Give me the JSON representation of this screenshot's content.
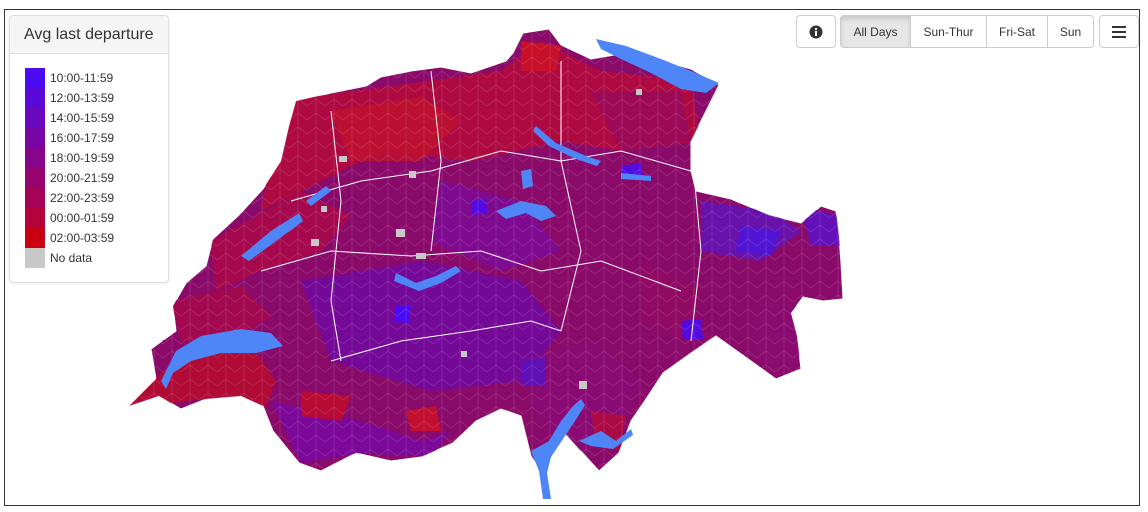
{
  "legend": {
    "title": "Avg last departure",
    "items": [
      {
        "label": "10:00-11:59",
        "color": "#4b0bf2"
      },
      {
        "label": "12:00-13:59",
        "color": "#5a0ad8"
      },
      {
        "label": "14:00-15:59",
        "color": "#6908be"
      },
      {
        "label": "16:00-17:59",
        "color": "#7806a4"
      },
      {
        "label": "18:00-19:59",
        "color": "#87058a"
      },
      {
        "label": "20:00-21:59",
        "color": "#960470"
      },
      {
        "label": "22:00-23:59",
        "color": "#a50356"
      },
      {
        "label": "00:00-01:59",
        "color": "#b4023c"
      },
      {
        "label": "02:00-03:59",
        "color": "#c80010"
      },
      {
        "label": "No data",
        "color": "#c8c8c8"
      }
    ]
  },
  "toolbar": {
    "info_icon": "info-circle-icon",
    "menu_icon": "hamburger-menu-icon",
    "day_filters": [
      {
        "label": "All Days",
        "active": true
      },
      {
        "label": "Sun-Thur",
        "active": false
      },
      {
        "label": "Fri-Sat",
        "active": false
      },
      {
        "label": "Sun",
        "active": false
      }
    ]
  },
  "map": {
    "region": "Switzerland",
    "lake_color": "#4f86f7",
    "border_color": "#ffffff"
  }
}
